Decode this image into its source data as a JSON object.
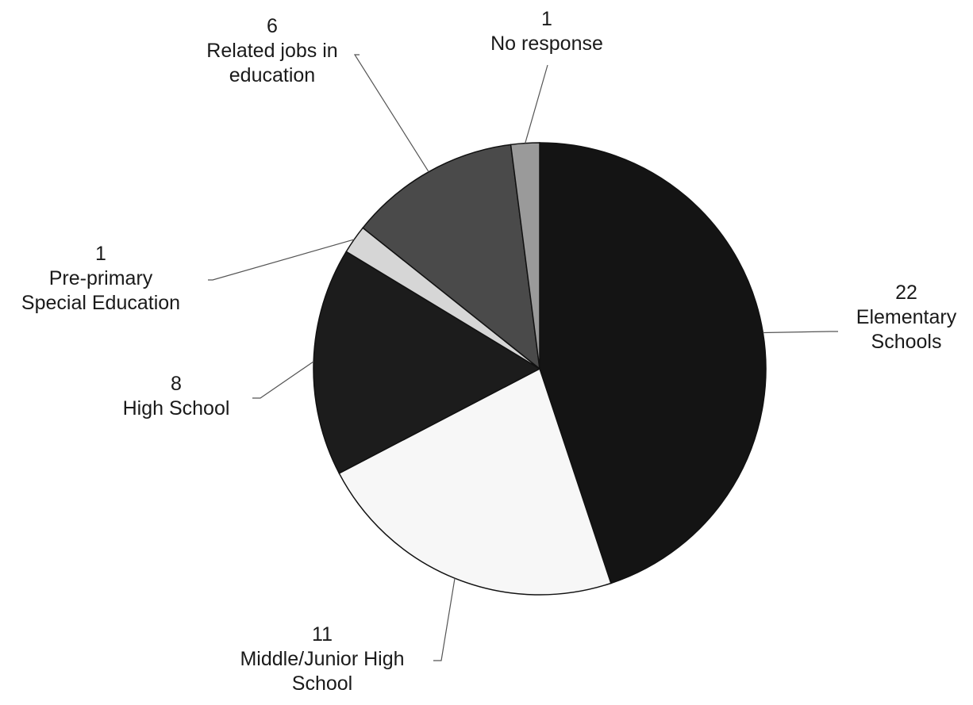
{
  "chart_data": {
    "type": "pie",
    "title": "",
    "legend": "none",
    "slices": [
      {
        "label": "Elementary Schools",
        "value": 22,
        "color": "#141414"
      },
      {
        "label": "Middle/Junior High School",
        "value": 11,
        "color": "#f7f7f7"
      },
      {
        "label": "High School",
        "value": 8,
        "color": "#1c1c1c"
      },
      {
        "label": "Pre-primary Special Education",
        "value": 1,
        "color": "#d6d6d6"
      },
      {
        "label": "Related jobs in education",
        "value": 6,
        "color": "#4a4a4a"
      },
      {
        "label": "No response",
        "value": 1,
        "color": "#9a9a9a"
      }
    ],
    "labels": [
      {
        "value": "22",
        "lines": [
          "Elementary",
          "Schools"
        ]
      },
      {
        "value": "11",
        "lines": [
          "Middle/Junior High",
          "School"
        ]
      },
      {
        "value": "8",
        "lines": [
          "High School"
        ]
      },
      {
        "value": "1",
        "lines": [
          "Pre-primary",
          "Special Education"
        ]
      },
      {
        "value": "6",
        "lines": [
          "Related jobs in",
          "education"
        ]
      },
      {
        "value": "1",
        "lines": [
          "No response"
        ]
      }
    ]
  }
}
